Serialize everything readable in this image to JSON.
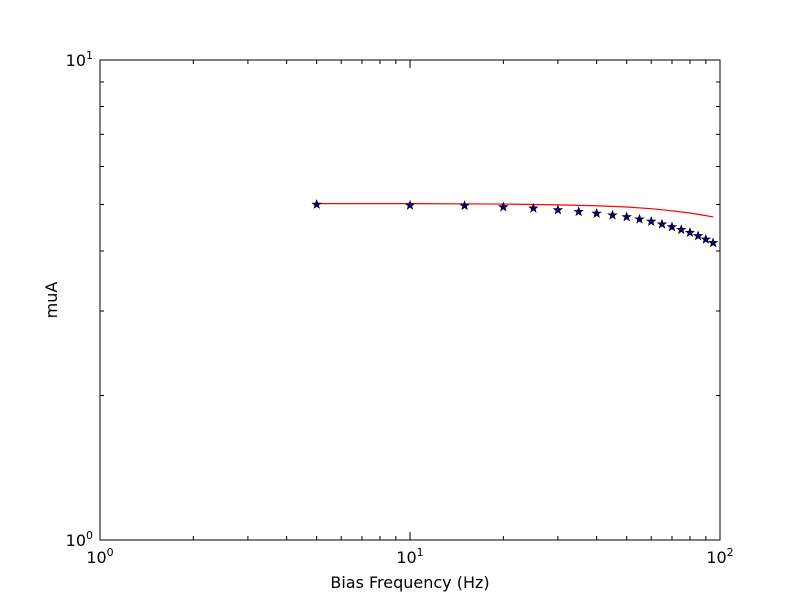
{
  "chart_data": {
    "type": "scatter",
    "title": "",
    "xlabel": "Bias Frequency (Hz)",
    "ylabel": "muA",
    "xscale": "log",
    "yscale": "log",
    "xlim": [
      1,
      100
    ],
    "ylim": [
      1,
      10
    ],
    "grid": false,
    "x_tick_labels": [
      {
        "value": 1,
        "base": "10",
        "exp": "0"
      },
      {
        "value": 10,
        "base": "10",
        "exp": "1"
      },
      {
        "value": 100,
        "base": "10",
        "exp": "2"
      }
    ],
    "y_tick_labels": [
      {
        "value": 1,
        "base": "10",
        "exp": "0"
      },
      {
        "value": 10,
        "base": "10",
        "exp": "1"
      }
    ],
    "series": [
      {
        "style": "markers",
        "marker": "star",
        "color": "#000080",
        "x": [
          5,
          10,
          15,
          20,
          25,
          30,
          35,
          40,
          45,
          50,
          55,
          60,
          65,
          70,
          75,
          80,
          85,
          90,
          95
        ],
        "y": [
          5.0,
          4.98,
          4.97,
          4.94,
          4.91,
          4.87,
          4.83,
          4.79,
          4.75,
          4.71,
          4.66,
          4.61,
          4.55,
          4.49,
          4.43,
          4.37,
          4.3,
          4.23,
          4.16
        ]
      },
      {
        "style": "line",
        "color": "#ff0000",
        "x": [
          5,
          10,
          20,
          30,
          40,
          50,
          60,
          70,
          80,
          90,
          95
        ],
        "y": [
          5.02,
          5.02,
          5.01,
          4.99,
          4.97,
          4.94,
          4.9,
          4.85,
          4.8,
          4.74,
          4.71
        ]
      }
    ]
  }
}
